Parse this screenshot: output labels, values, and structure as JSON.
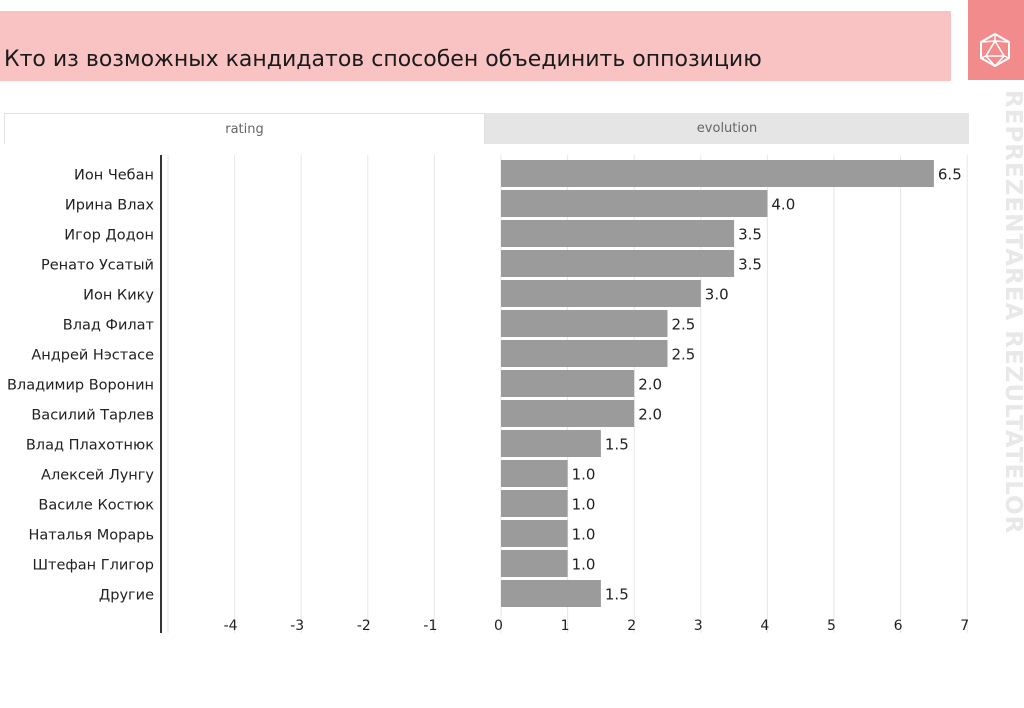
{
  "header": {
    "title": "Кто из возможных кандидатов способен объединить оппозицию"
  },
  "branding": {
    "side_text": "REPREZENTAREA REZULTATELOR",
    "accent": "#f28b8b",
    "header_bg": "#f9c3c3"
  },
  "tabs": [
    {
      "label": "rating",
      "active": true
    },
    {
      "label": "evolution",
      "active": false
    }
  ],
  "chart_data": {
    "type": "bar",
    "orientation": "horizontal",
    "categories": [
      "Ион Чебан",
      "Ирина Влах",
      "Игор Додон",
      "Ренато Усатый",
      "Ион Кику",
      "Влад Филат",
      "Андрей Нэстасе",
      "Владимир Воронин",
      "Василий Тарлев",
      "Влад Плахотнюк",
      "Алексей Лунгу",
      "Василе Костюк",
      "Наталья Морарь",
      "Штефан Глигор",
      "Другие"
    ],
    "values": [
      6.5,
      4.0,
      3.5,
      3.5,
      3.0,
      2.5,
      2.5,
      2.0,
      2.0,
      1.5,
      1.0,
      1.0,
      1.0,
      1.0,
      1.5
    ],
    "value_labels": [
      "6.5",
      "4.0",
      "3.5",
      "3.5",
      "3.0",
      "2.5",
      "2.5",
      "2.0",
      "2.0",
      "1.5",
      "1.0",
      "1.0",
      "1.0",
      "1.0",
      "1.5"
    ],
    "xlim": [
      -5,
      7
    ],
    "ticks": [
      -4,
      -3,
      -2,
      -1,
      0,
      1,
      2,
      3,
      4,
      5,
      6,
      7
    ],
    "bar_color": "#9b9b9b",
    "grid": true,
    "xlabel": "",
    "ylabel": "",
    "title": ""
  }
}
